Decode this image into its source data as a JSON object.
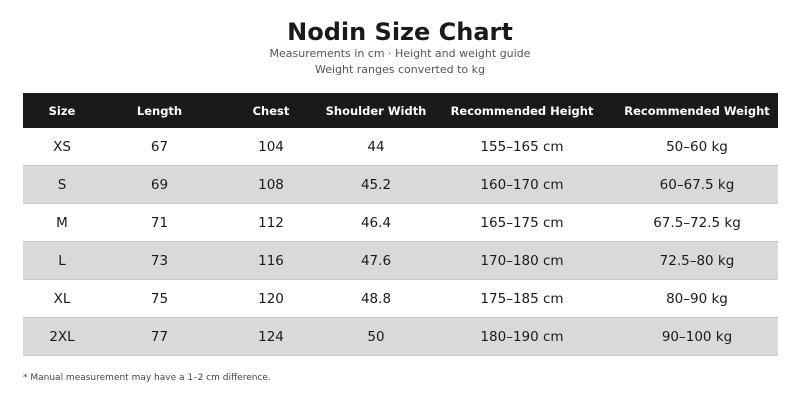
{
  "header": {
    "title": "Nodin Size Chart",
    "subtitle": "Measurements in cm · Height and weight guide",
    "note": "Weight ranges converted to kg"
  },
  "table": {
    "headers": [
      "Size",
      "Length",
      "Chest",
      "Shoulder Width",
      "Recommended Height",
      "Recommended Weight"
    ],
    "rows": [
      [
        "XS",
        "67",
        "104",
        "44",
        "155–165 cm",
        "50–60 kg"
      ],
      [
        "S",
        "69",
        "108",
        "45.2",
        "160–170 cm",
        "60–67.5 kg"
      ],
      [
        "M",
        "71",
        "112",
        "46.4",
        "165–175 cm",
        "67.5–72.5 kg"
      ],
      [
        "L",
        "73",
        "116",
        "47.6",
        "170–180 cm",
        "72.5–80 kg"
      ],
      [
        "XL",
        "75",
        "120",
        "48.8",
        "175–185 cm",
        "80–90 kg"
      ],
      [
        "2XL",
        "77",
        "124",
        "50",
        "180–190 cm",
        "90–100 kg"
      ]
    ]
  },
  "footnote": "* Manual measurement may have a 1–2 cm difference."
}
